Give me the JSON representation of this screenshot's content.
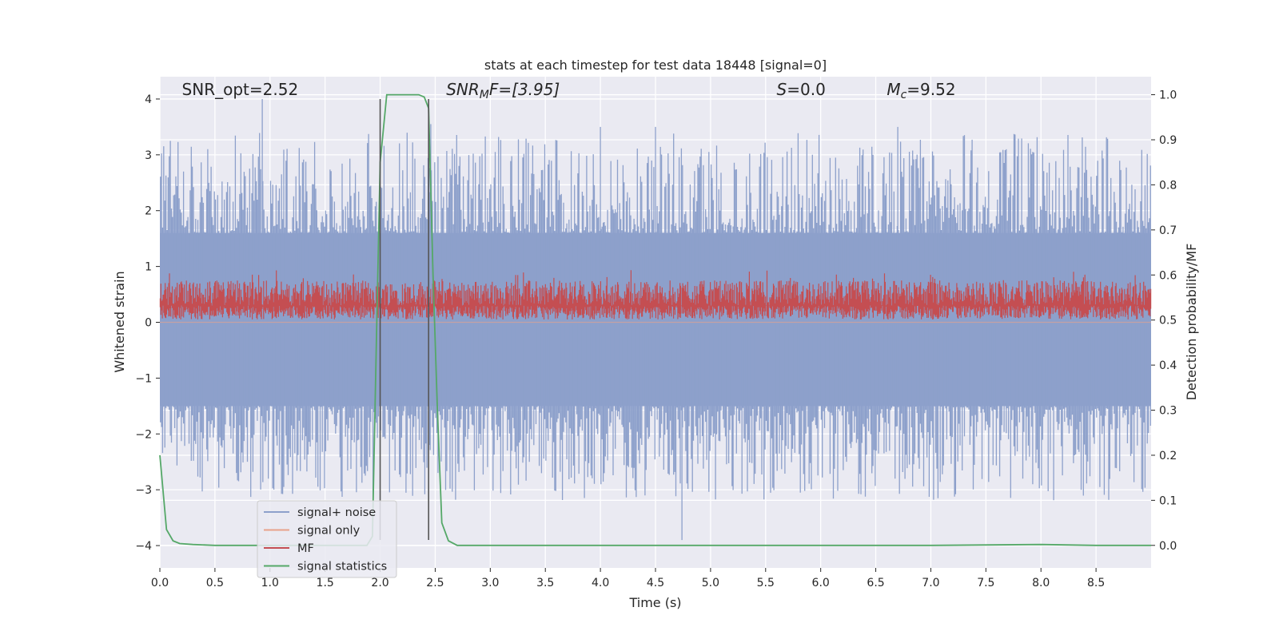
{
  "chart_data": {
    "type": "line",
    "title": "stats at each timestep for test data 18448 [signal=0]",
    "xlabel": "Time (s)",
    "ylabel": "Whitened strain",
    "ylabel_right": "Detection probability/MF",
    "xlim": [
      0,
      9.0
    ],
    "ylim": [
      -4.4,
      4.4
    ],
    "ylim_right": [
      -0.05,
      1.04
    ],
    "x_ticks": [
      0,
      0.5,
      1.0,
      1.5,
      2.0,
      2.5,
      3.0,
      3.5,
      4.0,
      4.5,
      5.0,
      5.5,
      6.0,
      6.5,
      7.0,
      7.5,
      8.0,
      8.5
    ],
    "x_tick_labels": [
      "0.0",
      "0.5",
      "1.0",
      "1.5",
      "2.0",
      "2.5",
      "3.0",
      "3.5",
      "4.0",
      "4.5",
      "5.0",
      "5.5",
      "6.0",
      "6.5",
      "7.0",
      "7.5",
      "8.0",
      "8.5"
    ],
    "y_ticks": [
      -4,
      -3,
      -2,
      -1,
      0,
      1,
      2,
      3,
      4
    ],
    "y_tick_labels": [
      "−4",
      "−3",
      "−2",
      "−1",
      "0",
      "1",
      "2",
      "3",
      "4"
    ],
    "y_right_ticks": [
      0.0,
      0.1,
      0.2,
      0.3,
      0.4,
      0.5,
      0.6,
      0.7,
      0.8,
      0.9,
      1.0
    ],
    "y_right_tick_labels": [
      "0.0",
      "0.1",
      "0.2",
      "0.3",
      "0.4",
      "0.5",
      "0.6",
      "0.7",
      "0.8",
      "0.9",
      "1.0"
    ],
    "grid": true,
    "legend_position": "lower-left",
    "annotations": [
      {
        "name": "snr-opt",
        "text": "SNR_opt=2.52",
        "x": 0.2,
        "y": 4.1,
        "italic": false
      },
      {
        "name": "snr-mf",
        "text": "SNR",
        "sub": "M",
        "tail": "F=[3.95]",
        "x": 2.6,
        "y": 4.1,
        "italic": true
      },
      {
        "name": "s-value",
        "text": "S",
        "tail": "=0.0",
        "x": 5.6,
        "y": 4.1,
        "italic": true
      },
      {
        "name": "mc-value",
        "text": "M",
        "sub": "c",
        "tail": "=9.52",
        "x": 6.6,
        "y": 4.1,
        "italic": true
      }
    ],
    "vertical_lines": [
      2.0,
      2.44
    ],
    "series": [
      {
        "name": "signal+ noise",
        "color": "#8da0cb",
        "kind": "noise",
        "axis": "left",
        "band": [
          -1.5,
          1.6
        ],
        "peak_range": [
          -3.6,
          4.0
        ],
        "notable_peaks": [
          [
            0.93,
            4.0
          ],
          [
            4.74,
            -3.9
          ],
          [
            2.46,
            3.55
          ],
          [
            4.0,
            3.5
          ],
          [
            4.5,
            3.5
          ],
          [
            6.7,
            3.5
          ]
        ]
      },
      {
        "name": "signal only",
        "color": "#e8a18a",
        "kind": "flat",
        "axis": "left",
        "values": [
          0
        ]
      },
      {
        "name": "MF",
        "color": "#c44e52",
        "kind": "mf",
        "axis": "left",
        "band": [
          0.05,
          0.75
        ],
        "peak_range": [
          0.0,
          1.0
        ]
      },
      {
        "name": "signal statistics",
        "color": "#55a868",
        "kind": "line",
        "axis": "right",
        "x": [
          0.0,
          0.06,
          0.12,
          0.18,
          0.3,
          0.5,
          1.0,
          1.5,
          1.88,
          1.93,
          1.97,
          2.0,
          2.06,
          2.2,
          2.35,
          2.4,
          2.44,
          2.48,
          2.52,
          2.56,
          2.62,
          2.7,
          3.0,
          5.0,
          7.0,
          8.0,
          8.5,
          9.0
        ],
        "y": [
          0.2,
          0.035,
          0.01,
          0.004,
          0.002,
          0.0,
          0.0,
          0.0,
          0.0,
          0.02,
          0.5,
          0.85,
          1.0,
          1.0,
          1.0,
          0.995,
          0.97,
          0.6,
          0.3,
          0.05,
          0.01,
          0.0,
          0.0,
          0.0,
          0.0,
          0.002,
          0.0,
          0.0
        ]
      }
    ]
  }
}
